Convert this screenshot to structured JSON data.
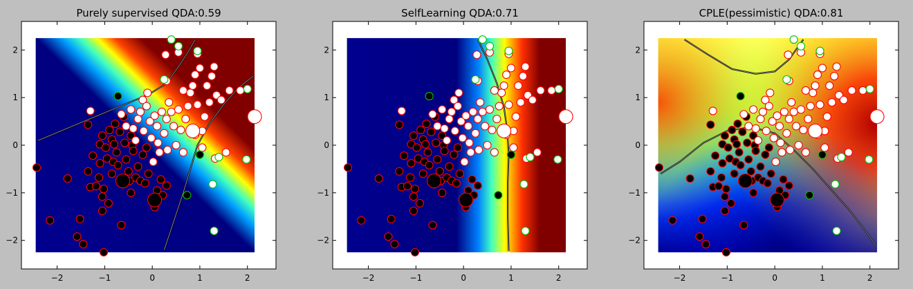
{
  "figure": {
    "background": "#bfbfbf"
  },
  "chart_data": [
    {
      "type": "scatter",
      "title": "Purely supervised QDA:0.59",
      "xlabel": "",
      "ylabel": "",
      "xlim": [
        -2.75,
        2.6
      ],
      "ylim": [
        -2.6,
        2.6
      ],
      "xticks": [
        -2,
        -1,
        0,
        1,
        2
      ],
      "yticks": [
        -2,
        -1,
        0,
        1,
        2
      ],
      "background": "heatmap (jet colormap) of class probability with black decision contour; blue = class 0, red = class 1",
      "boundary": "two hyperbola branches: lower-left branch bends from (-2.4, 0.1) to (0.9, 2.2); right branch runs from (0.25, -2.2) up to (2.1, 1.5)"
    },
    {
      "type": "scatter",
      "title": "SelfLearning QDA:0.71",
      "xlabel": "",
      "ylabel": "",
      "xlim": [
        -2.75,
        2.6
      ],
      "ylim": [
        -2.6,
        2.6
      ],
      "xticks": [
        -2,
        -1,
        0,
        1,
        2
      ],
      "yticks": [
        -2,
        -1,
        0,
        1,
        2
      ],
      "background": "heatmap (jet colormap) of class probability with black decision contour",
      "boundary": "near-vertical curve from (0.3, 2.2) bending through (0.95, 0) to (0.95, -2.2)"
    },
    {
      "type": "scatter",
      "title": "CPLE(pessimistic) QDA:0.81",
      "xlabel": "",
      "ylabel": "",
      "xlim": [
        -2.75,
        2.6
      ],
      "ylim": [
        -2.6,
        2.6
      ],
      "xticks": [
        -2,
        -1,
        0,
        1,
        2
      ],
      "yticks": [
        -2,
        -1,
        0,
        1,
        2
      ],
      "background": "heatmap (jet colormap) of class probability with black decision contours",
      "boundary": "upper arc from (-1.9, 2.2) dipping to (-0.1, 1.5) and rising to (0.6, 2.2); lower arc from (-2.4, -0.6) peaking near (-0.5, 0.35) and falling to (2.1, -2.1)"
    }
  ],
  "points": {
    "class0_unlabeled": [
      [
        -2.43,
        -0.47
      ],
      [
        -2.15,
        -1.58
      ],
      [
        -1.78,
        -0.7
      ],
      [
        -1.58,
        -1.92
      ],
      [
        -1.45,
        -2.08
      ],
      [
        -1.3,
        -0.88
      ],
      [
        -1.18,
        -0.86
      ],
      [
        -1.12,
        -0.68
      ],
      [
        -1.05,
        -1.38
      ],
      [
        -1.05,
        -1.08
      ],
      [
        -1.02,
        -2.25
      ],
      [
        -1.02,
        -0.92
      ],
      [
        -1.35,
        -0.55
      ],
      [
        -1.35,
        0.43
      ],
      [
        -1.25,
        -0.22
      ],
      [
        -1.1,
        -0.38
      ],
      [
        -1.1,
        0.02
      ],
      [
        -1.05,
        0.2
      ],
      [
        -0.98,
        -0.05
      ],
      [
        -0.95,
        -0.28
      ],
      [
        -0.92,
        -1.22
      ],
      [
        -0.9,
        0.32
      ],
      [
        -0.85,
        0.12
      ],
      [
        -0.85,
        -0.6
      ],
      [
        -0.82,
        -0.35
      ],
      [
        -0.8,
        0.02
      ],
      [
        -0.78,
        0.45
      ],
      [
        -0.75,
        -0.15
      ],
      [
        -0.72,
        -0.42
      ],
      [
        -0.68,
        0.28
      ],
      [
        -0.65,
        -1.68
      ],
      [
        -0.62,
        -0.82
      ],
      [
        -0.6,
        0.6
      ],
      [
        -0.58,
        0.05
      ],
      [
        -0.55,
        -0.3
      ],
      [
        -0.5,
        -0.55
      ],
      [
        -0.48,
        -0.75
      ],
      [
        -0.45,
        -1.0
      ],
      [
        -0.45,
        0.2
      ],
      [
        -0.42,
        0.0
      ],
      [
        -0.4,
        -0.12
      ],
      [
        -0.35,
        -0.68
      ],
      [
        -0.3,
        -0.45
      ],
      [
        -0.25,
        -0.75
      ],
      [
        -0.2,
        -0.2
      ],
      [
        -0.15,
        -0.8
      ],
      [
        -0.12,
        -0.05
      ],
      [
        -0.08,
        -0.6
      ],
      [
        0.1,
        -0.95
      ],
      [
        0.18,
        -0.72
      ],
      [
        0.22,
        -1.05
      ],
      [
        0.3,
        -0.85
      ],
      [
        0.05,
        -1.3
      ],
      [
        -1.52,
        -1.55
      ]
    ],
    "class1_unlabeled": [
      [
        -1.3,
        0.72
      ],
      [
        -0.65,
        0.65
      ],
      [
        -0.55,
        0.4
      ],
      [
        -0.45,
        0.75
      ],
      [
        -0.4,
        0.35
      ],
      [
        -0.35,
        0.1
      ],
      [
        -0.3,
        0.55
      ],
      [
        -0.25,
        0.7
      ],
      [
        -0.2,
        0.95
      ],
      [
        -0.18,
        0.3
      ],
      [
        -0.12,
        0.82
      ],
      [
        -0.1,
        1.1
      ],
      [
        -0.05,
        0.5
      ],
      [
        -0.02,
        0.15
      ],
      [
        0.02,
        -0.35
      ],
      [
        0.05,
        0.62
      ],
      [
        0.1,
        0.4
      ],
      [
        0.12,
        0.05
      ],
      [
        0.15,
        -0.15
      ],
      [
        0.2,
        0.7
      ],
      [
        0.25,
        0.25
      ],
      [
        0.3,
        0.55
      ],
      [
        0.32,
        -0.1
      ],
      [
        0.35,
        0.9
      ],
      [
        0.4,
        0.7
      ],
      [
        0.45,
        0.4
      ],
      [
        0.5,
        0.0
      ],
      [
        0.55,
        0.75
      ],
      [
        0.6,
        0.32
      ],
      [
        0.65,
        -0.15
      ],
      [
        0.7,
        0.55
      ],
      [
        0.75,
        0.82
      ],
      [
        0.8,
        1.1
      ],
      [
        0.85,
        1.25
      ],
      [
        0.9,
        1.48
      ],
      [
        0.95,
        0.85
      ],
      [
        1.0,
        1.62
      ],
      [
        1.05,
        -0.05
      ],
      [
        1.1,
        0.6
      ],
      [
        1.15,
        1.25
      ],
      [
        1.2,
        0.9
      ],
      [
        1.25,
        1.45
      ],
      [
        1.3,
        1.65
      ],
      [
        1.32,
        -0.28
      ],
      [
        1.35,
        1.05
      ],
      [
        1.45,
        0.95
      ],
      [
        1.55,
        -0.15
      ],
      [
        1.62,
        1.15
      ],
      [
        1.85,
        1.15
      ],
      [
        0.3,
        1.35
      ],
      [
        0.55,
        1.95
      ],
      [
        0.65,
        1.15
      ],
      [
        0.95,
        1.92
      ],
      [
        1.05,
        0.3
      ],
      [
        0.28,
        1.9
      ],
      [
        0.9,
        0.22
      ]
    ],
    "class0_labeled_small": [
      [
        -0.72,
        1.03
      ],
      [
        1.0,
        -0.2
      ],
      [
        0.73,
        -1.05
      ]
    ],
    "class0_labeled_large": [
      [
        -0.62,
        -0.75
      ],
      [
        0.05,
        -1.15
      ]
    ],
    "class1_labeled_small": [
      [
        0.4,
        2.22
      ],
      [
        0.55,
        2.08
      ],
      [
        1.27,
        -0.82
      ],
      [
        1.3,
        -1.8
      ],
      [
        0.95,
        1.98
      ],
      [
        0.25,
        1.38
      ],
      [
        1.4,
        -0.25
      ],
      [
        1.98,
        -0.3
      ],
      [
        2.0,
        1.18
      ]
    ],
    "class1_labeled_large": [
      [
        0.85,
        0.3
      ],
      [
        2.15,
        0.6
      ]
    ]
  },
  "colors": {
    "class0_fill": "#000000",
    "class0_edge": "#ff0000",
    "class1_fill": "#ffffff",
    "class1_edge": "#ff0000",
    "labeled_edge": "#00c000"
  }
}
